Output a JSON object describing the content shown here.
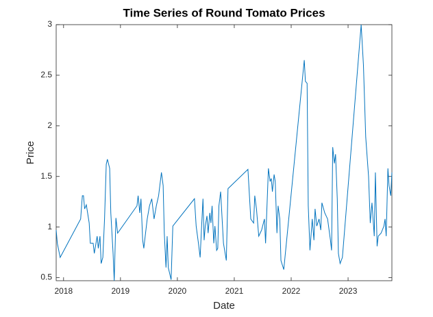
{
  "chart_data": {
    "type": "line",
    "title": "Time Series of Round Tomato Prices",
    "xlabel": "Date",
    "ylabel": "Price",
    "color": "#0072bd",
    "xlim": [
      2017.87,
      2023.77
    ],
    "xticks": [
      2018,
      2019,
      2020,
      2021,
      2022,
      2023
    ],
    "ylim": [
      0.47,
      3
    ],
    "yticks": [
      0.5,
      1,
      1.5,
      2,
      2.5,
      3
    ],
    "x": [
      2017.87,
      2017.89,
      2017.94,
      2018.3,
      2018.33,
      2018.35,
      2018.37,
      2018.4,
      2018.45,
      2018.47,
      2018.52,
      2018.54,
      2018.59,
      2018.61,
      2018.64,
      2018.66,
      2018.69,
      2018.72,
      2018.75,
      2018.77,
      2018.81,
      2018.83,
      2018.87,
      2018.89,
      2018.92,
      2018.95,
      2019.29,
      2019.31,
      2019.34,
      2019.36,
      2019.39,
      2019.41,
      2019.43,
      2019.47,
      2019.51,
      2019.55,
      2019.59,
      2019.63,
      2019.67,
      2019.72,
      2019.75,
      2019.77,
      2019.8,
      2019.82,
      2019.84,
      2019.89,
      2019.92,
      2020.3,
      2020.33,
      2020.37,
      2020.4,
      2020.42,
      2020.45,
      2020.47,
      2020.49,
      2020.52,
      2020.54,
      2020.57,
      2020.59,
      2020.61,
      2020.64,
      2020.66,
      2020.69,
      2020.71,
      2020.73,
      2020.76,
      2020.81,
      2020.86,
      2020.89,
      2021.24,
      2021.29,
      2021.34,
      2021.36,
      2021.39,
      2021.43,
      2021.48,
      2021.53,
      2021.55,
      2021.6,
      2021.63,
      2021.65,
      2021.67,
      2021.7,
      2021.72,
      2021.75,
      2021.77,
      2021.8,
      2021.82,
      2021.87,
      2022.23,
      2022.25,
      2022.28,
      2022.3,
      2022.33,
      2022.37,
      2022.4,
      2022.42,
      2022.45,
      2022.49,
      2022.52,
      2022.54,
      2022.59,
      2022.64,
      2022.69,
      2022.71,
      2022.73,
      2022.76,
      2022.78,
      2022.81,
      2022.83,
      2022.86,
      2022.9,
      2023.23,
      2023.27,
      2023.31,
      2023.36,
      2023.39,
      2023.42,
      2023.46,
      2023.48,
      2023.51,
      2023.53,
      2023.58,
      2023.63,
      2023.65,
      2023.67,
      2023.7,
      2023.72,
      2023.75,
      2023.77
    ],
    "values": [
      0.97,
      0.84,
      0.7,
      1.08,
      1.31,
      1.31,
      1.18,
      1.22,
      1.04,
      0.84,
      0.84,
      0.74,
      0.91,
      0.79,
      0.91,
      0.64,
      0.7,
      1.08,
      1.62,
      1.67,
      1.58,
      1.14,
      0.74,
      0.47,
      1.09,
      0.94,
      1.21,
      1.31,
      1.14,
      1.28,
      0.87,
      0.79,
      0.89,
      1.08,
      1.21,
      1.28,
      1.08,
      1.21,
      1.31,
      1.54,
      1.41,
      0.94,
      0.6,
      0.91,
      0.6,
      0.48,
      1.01,
      1.28,
      1.01,
      0.84,
      0.7,
      0.94,
      1.28,
      0.87,
      1.01,
      1.11,
      0.94,
      1.14,
      1.04,
      1.21,
      0.84,
      1.01,
      0.77,
      0.79,
      1.21,
      1.35,
      0.84,
      0.67,
      1.38,
      1.57,
      1.08,
      1.04,
      1.31,
      1.18,
      0.91,
      0.97,
      1.08,
      0.84,
      1.58,
      1.45,
      1.48,
      1.35,
      1.52,
      1.45,
      0.94,
      1.21,
      1.08,
      0.67,
      0.58,
      2.65,
      2.44,
      2.42,
      1.21,
      0.77,
      1.08,
      0.87,
      1.18,
      1.01,
      1.08,
      0.97,
      1.24,
      1.14,
      1.08,
      0.87,
      0.77,
      1.79,
      1.63,
      1.72,
      1.28,
      0.74,
      0.64,
      0.7,
      3.0,
      2.6,
      1.89,
      1.5,
      1.04,
      1.24,
      0.91,
      1.54,
      0.81,
      0.91,
      0.94,
      1.01,
      1.08,
      0.91,
      1.58,
      1.41,
      1.31,
      1.54
    ]
  }
}
